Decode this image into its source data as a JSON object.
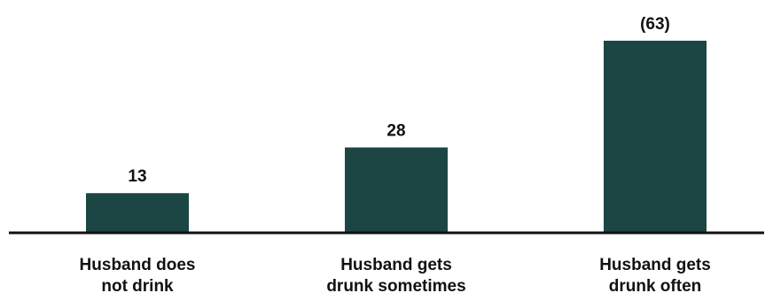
{
  "chart_data": {
    "type": "bar",
    "categories": [
      [
        "Husband does",
        "not drink"
      ],
      [
        "Husband gets",
        "drunk sometimes"
      ],
      [
        "Husband gets",
        "drunk often"
      ]
    ],
    "values": [
      13,
      28,
      63
    ],
    "value_labels": [
      "13",
      "28",
      "(63)"
    ],
    "title": "",
    "xlabel": "",
    "ylabel": "",
    "ylim": [
      0,
      63
    ],
    "grid": false,
    "legend": "none",
    "bar_color": "#1c4644",
    "axis_color": "#111111"
  }
}
